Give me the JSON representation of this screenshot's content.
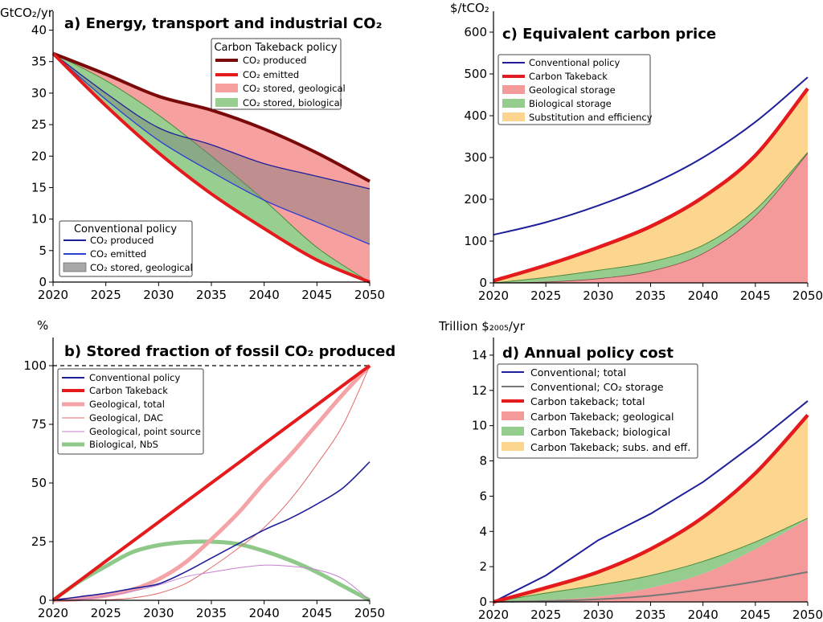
{
  "chart_data": [
    {
      "id": "a",
      "type": "area",
      "title": "a) Energy, transport and industrial CO₂",
      "ylabel": "GtCO₂/yr",
      "xlim": [
        2020,
        2050
      ],
      "ylim": [
        0,
        43
      ],
      "xticks": [
        2020,
        2025,
        2030,
        2035,
        2040,
        2045,
        2050
      ],
      "yticks": [
        0,
        5,
        10,
        15,
        20,
        25,
        30,
        35,
        40
      ],
      "x": [
        2020,
        2025,
        2030,
        2035,
        2040,
        2045,
        2050
      ],
      "legends": [
        {
          "title": "Carbon Takeback policy",
          "placement": "top-right",
          "entries": [
            "CO₂ produced",
            "CO₂ emitted",
            "CO₂ stored, geological",
            "CO₂ stored, biological"
          ]
        },
        {
          "title": "Conventional policy",
          "placement": "bottom-left",
          "entries": [
            "CO₂ produced",
            "CO₂ emitted",
            "CO₂ stored, geological"
          ]
        }
      ],
      "series": [
        {
          "name": "Carbon Takeback: CO₂ produced",
          "values": [
            36.3,
            33.0,
            29.5,
            27.3,
            24.3,
            20.5,
            16.0
          ],
          "color": "#7a0a0a"
        },
        {
          "name": "Carbon Takeback: CO₂ emitted",
          "values": [
            36.3,
            28.0,
            20.5,
            14.0,
            8.5,
            3.5,
            0.0
          ],
          "color": "#e41a1c"
        },
        {
          "name": "Carbon Takeback: biological boundary",
          "values": [
            36.3,
            32.0,
            26.5,
            20.0,
            13.0,
            5.5,
            0.0
          ],
          "color": "#4a8a3a"
        },
        {
          "name": "Conventional: CO₂ produced",
          "values": [
            36.3,
            30.0,
            24.5,
            21.8,
            18.8,
            16.8,
            14.8
          ],
          "color": "#1f1f9a"
        },
        {
          "name": "Conventional: CO₂ emitted",
          "values": [
            36.3,
            29.0,
            22.5,
            17.5,
            13.0,
            9.5,
            6.0
          ],
          "color": "#2b3fd1"
        }
      ]
    },
    {
      "id": "b",
      "type": "line",
      "title": "b) Stored fraction of fossil CO₂ produced",
      "ylabel": "%",
      "xlim": [
        2020,
        2050
      ],
      "ylim": [
        0,
        112
      ],
      "xticks": [
        2020,
        2025,
        2030,
        2035,
        2040,
        2045,
        2050
      ],
      "yticks": [
        0,
        25,
        50,
        75,
        100
      ],
      "reference_line": 100,
      "x": [
        2020,
        2022.5,
        2025,
        2027.5,
        2030,
        2032.5,
        2035,
        2037.5,
        2040,
        2042.5,
        2045,
        2047.5,
        2050
      ],
      "legends": [
        {
          "title": "",
          "placement": "top-left",
          "entries": [
            "Conventional policy",
            "Carbon Takeback",
            "Geological, total",
            "Geological, DAC",
            "Geological, point source",
            "Biological, NbS"
          ]
        }
      ],
      "series": [
        {
          "name": "Conventional policy",
          "values": [
            0,
            1.5,
            3.0,
            5.0,
            7.0,
            12.0,
            18.0,
            24.0,
            30.0,
            35.0,
            41.0,
            48.0,
            59.0
          ],
          "color": "#1f1f9a"
        },
        {
          "name": "Carbon Takeback",
          "values": [
            0,
            8.3,
            16.7,
            25.0,
            33.3,
            41.7,
            50.0,
            58.3,
            66.7,
            75.0,
            83.3,
            91.7,
            100.0
          ],
          "color": "#e41a1c"
        },
        {
          "name": "Geological, total",
          "values": [
            0,
            0.5,
            2.0,
            4.5,
            9.0,
            16.0,
            26.0,
            37.0,
            50.0,
            62.0,
            75.0,
            88.0,
            100.0
          ],
          "color": "#f4a3a6"
        },
        {
          "name": "Geological, DAC",
          "values": [
            0,
            0,
            0.2,
            1.0,
            3.0,
            7.0,
            14.0,
            22.0,
            31.0,
            43.0,
            58.0,
            75.0,
            100.0
          ],
          "color": "#e46a6a"
        },
        {
          "name": "Geological, point source",
          "values": [
            0,
            0.4,
            1.8,
            3.8,
            6.5,
            10.0,
            12.0,
            13.8,
            15.0,
            14.5,
            13.0,
            9.0,
            0.0
          ],
          "color": "#c77fd0"
        },
        {
          "name": "Biological, NbS",
          "values": [
            0,
            8.0,
            14.5,
            20.5,
            23.5,
            24.8,
            25.0,
            24.0,
            21.0,
            17.0,
            12.0,
            6.0,
            0.0
          ],
          "color": "#8fc98a"
        }
      ]
    },
    {
      "id": "c",
      "type": "area",
      "title": "c) Equivalent carbon price",
      "ylabel": "$/tCO₂",
      "xlim": [
        2020,
        2050
      ],
      "ylim": [
        0,
        650
      ],
      "xticks": [
        2020,
        2025,
        2030,
        2035,
        2040,
        2045,
        2050
      ],
      "yticks": [
        0,
        100,
        200,
        300,
        400,
        500,
        600
      ],
      "x": [
        2020,
        2025,
        2030,
        2035,
        2040,
        2045,
        2050
      ],
      "legends": [
        {
          "title": "",
          "placement": "top-left",
          "entries": [
            "Conventional policy",
            "Carbon Takeback",
            "Geological storage",
            "Biological storage",
            "Substitution and efficiency"
          ]
        }
      ],
      "series": [
        {
          "name": "Conventional policy",
          "values": [
            115,
            145,
            185,
            235,
            300,
            385,
            492
          ],
          "color": "#1f1f9a"
        },
        {
          "name": "Carbon Takeback",
          "values": [
            5,
            42,
            85,
            135,
            205,
            305,
            465
          ],
          "color": "#e41a1c"
        },
        {
          "name": "Geological storage",
          "values": [
            0,
            2,
            10,
            28,
            70,
            160,
            310
          ],
          "color": "#f59a9a"
        },
        {
          "name": "Biological storage",
          "values": [
            0,
            13,
            30,
            50,
            90,
            175,
            312
          ],
          "color": "#95cd8f"
        }
      ]
    },
    {
      "id": "d",
      "type": "area",
      "title": "d) Annual policy cost",
      "ylabel": "Trillion $₂₀₀₅/yr",
      "xlim": [
        2020,
        2050
      ],
      "ylim": [
        0,
        15
      ],
      "xticks": [
        2020,
        2025,
        2030,
        2035,
        2040,
        2045,
        2050
      ],
      "yticks": [
        0,
        2,
        4,
        6,
        8,
        10,
        12,
        14
      ],
      "x": [
        2020,
        2025,
        2030,
        2035,
        2040,
        2045,
        2050
      ],
      "legends": [
        {
          "title": "",
          "placement": "top-left",
          "entries": [
            "Conventional; total",
            "Conventional; CO₂ storage",
            "Carbon takeback; total",
            "Carbon Takeback; geological",
            "Carbon Takeback; biological",
            "Carbon Takeback; subs. and eff."
          ]
        }
      ],
      "series": [
        {
          "name": "Conventional; total",
          "values": [
            0,
            1.5,
            3.5,
            5.0,
            6.8,
            9.0,
            11.4
          ],
          "color": "#1f1f9a"
        },
        {
          "name": "Conventional; CO₂ storage",
          "values": [
            0,
            0.05,
            0.15,
            0.35,
            0.7,
            1.15,
            1.7
          ],
          "color": "#777777"
        },
        {
          "name": "Carbon takeback; total",
          "values": [
            0,
            0.8,
            1.7,
            3.0,
            4.8,
            7.3,
            10.6
          ],
          "color": "#e41a1c"
        },
        {
          "name": "Carbon Takeback; geological",
          "values": [
            0,
            0.1,
            0.3,
            0.8,
            1.6,
            3.0,
            4.7
          ],
          "color": "#f59a9a"
        },
        {
          "name": "Carbon Takeback; biological",
          "values": [
            0,
            0.5,
            0.95,
            1.5,
            2.3,
            3.4,
            4.75
          ],
          "color": "#95cd8f"
        }
      ]
    }
  ]
}
